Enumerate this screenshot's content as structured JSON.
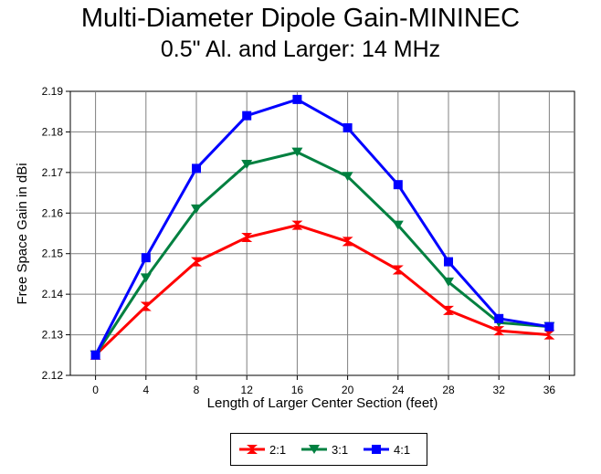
{
  "title": "Multi-Diameter Dipole Gain-MININEC",
  "subtitle": "0.5\" Al. and Larger:  14 MHz",
  "chart_data": {
    "type": "line",
    "title": "Multi-Diameter Dipole Gain-MININEC",
    "subtitle": "0.5\" Al. and Larger:  14 MHz",
    "xlabel": "Length of Larger Center Section (feet)",
    "ylabel": "Free Space Gain in dBi",
    "categories": [
      "0",
      "4",
      "8",
      "12",
      "16",
      "20",
      "24",
      "28",
      "32",
      "36"
    ],
    "ylim": [
      2.12,
      2.19
    ],
    "yticks": [
      "2.12",
      "2.13",
      "2.14",
      "2.15",
      "2.16",
      "2.17",
      "2.18",
      "2.19"
    ],
    "grid": true,
    "legend_position": "bottom",
    "series": [
      {
        "name": "2:1",
        "color": "#ff0000",
        "marker": "hourglass",
        "values": [
          2.125,
          2.137,
          2.148,
          2.154,
          2.157,
          2.153,
          2.146,
          2.136,
          2.131,
          2.13
        ]
      },
      {
        "name": "3:1",
        "color": "#008040",
        "marker": "triangle-down",
        "values": [
          2.125,
          2.144,
          2.161,
          2.172,
          2.175,
          2.169,
          2.157,
          2.143,
          2.133,
          2.132
        ]
      },
      {
        "name": "4:1",
        "color": "#0000ff",
        "marker": "square",
        "values": [
          2.125,
          2.149,
          2.171,
          2.184,
          2.188,
          2.181,
          2.167,
          2.148,
          2.134,
          2.132
        ]
      }
    ]
  }
}
